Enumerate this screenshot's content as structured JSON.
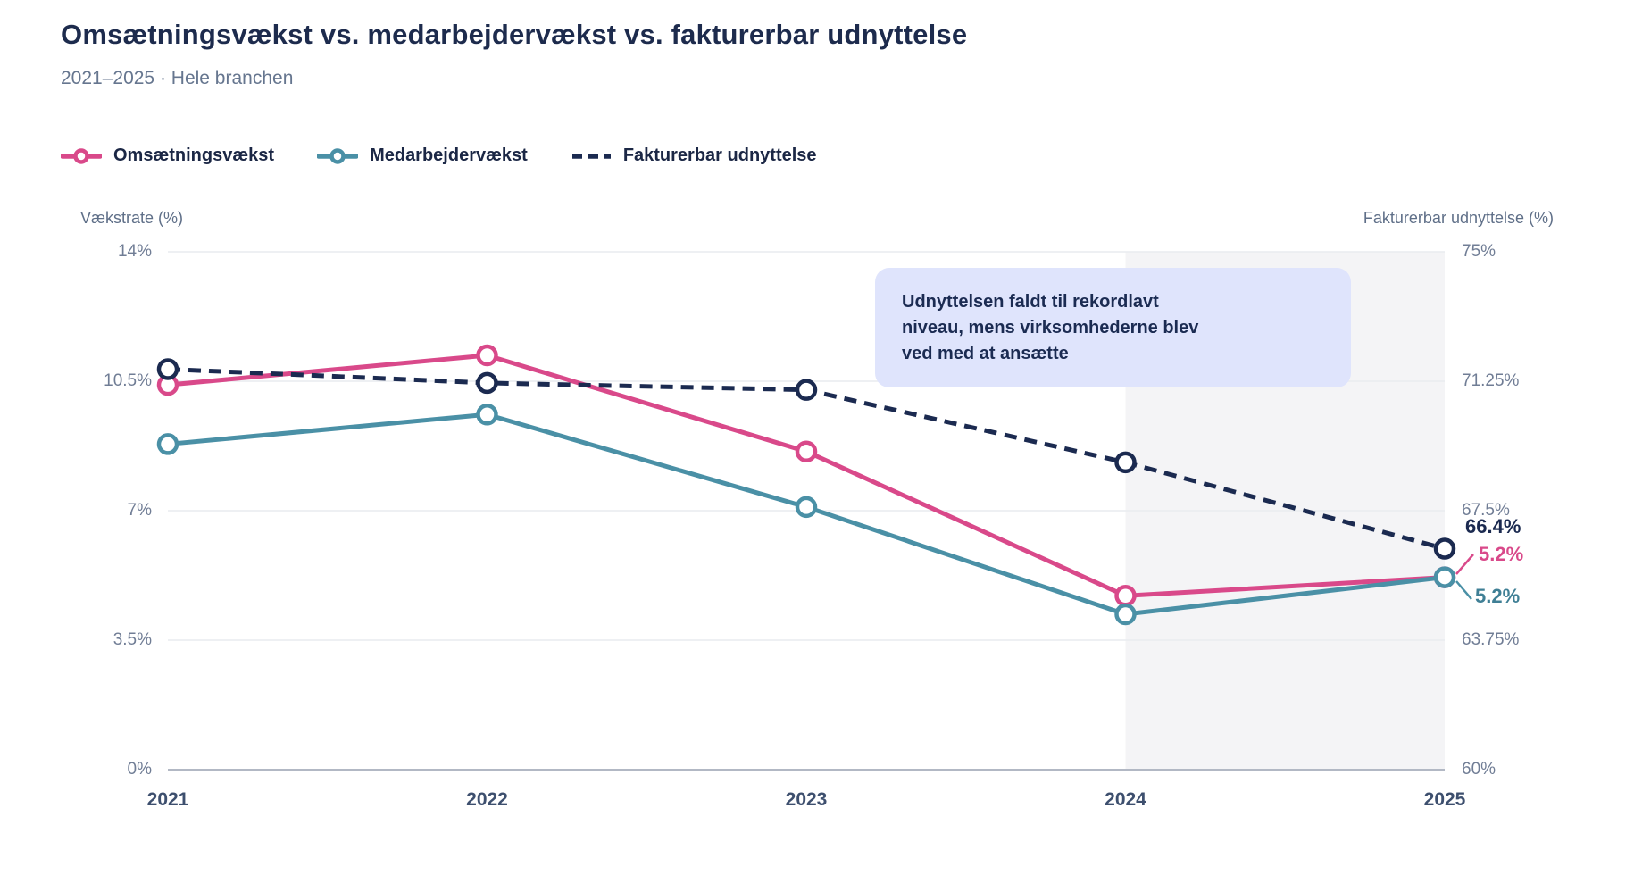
{
  "colors": {
    "pink": "#d9498a",
    "teal": "#4a90a6",
    "navy": "#1b2a50",
    "highlight_bg": "#f4f4f6",
    "gridline": "#e9ebef",
    "axis_line": "#b2b8c4",
    "annotation_bg": "#dfe4fc",
    "annotation_text": "#1b2b52"
  },
  "chart_data": {
    "type": "line",
    "title": "Omsætningsvækst vs. medarbejdervækst vs. fakturerbar udnyttelse",
    "subtitle": "2021–2025 · Hele branchen",
    "x": [
      2021,
      2022,
      2023,
      2024,
      2025
    ],
    "x_labels": [
      "2021",
      "2022",
      "2023",
      "2024",
      "2025"
    ],
    "series": [
      {
        "id": "omsaetningsvaekst",
        "name": "Omsætningsvækst",
        "axis": "left",
        "style": "solid",
        "color": "#d9498a",
        "values": [
          10.4,
          11.2,
          8.6,
          4.7,
          5.2
        ]
      },
      {
        "id": "medarbejdervaekst",
        "name": "Medarbejdervækst",
        "axis": "left",
        "style": "solid",
        "color": "#4a90a6",
        "values": [
          8.8,
          9.6,
          7.1,
          4.2,
          5.2
        ]
      },
      {
        "id": "fakturerbar-udnyttelse",
        "name": "Fakturerbar udnyttelse",
        "axis": "right",
        "style": "dashed",
        "color": "#1b2a50",
        "values": [
          71.6,
          71.2,
          71.0,
          68.9,
          66.4
        ]
      }
    ],
    "left_axis": {
      "label": "Vækstrate (%)",
      "ticks": [
        "14%",
        "10.5%",
        "7%",
        "3.5%",
        "0%"
      ],
      "range": [
        0,
        14
      ]
    },
    "right_axis": {
      "label": "Fakturerbar udnyttelse (%)",
      "ticks": [
        "75%",
        "71.25%",
        "67.5%",
        "63.75%",
        "60%"
      ],
      "range": [
        60,
        75
      ]
    },
    "grid": "horizontal",
    "legend_position": "top-left",
    "highlight_region": {
      "from": 2024,
      "to": 2025
    },
    "end_labels": [
      {
        "text": "66.4%",
        "series": "fakturerbar-udnyttelse",
        "color": "#1b2a50"
      },
      {
        "text": "5.2%",
        "series": "omsaetningsvaekst",
        "color": "#d9498a"
      },
      {
        "text": "5.2%",
        "series": "medarbejdervaekst",
        "color": "#3f7f95"
      }
    ],
    "annotation": {
      "lines": [
        "Udnyttelsen faldt til rekordlavt",
        "niveau, mens virksomhederne blev",
        "ved med at ansætte"
      ]
    }
  }
}
